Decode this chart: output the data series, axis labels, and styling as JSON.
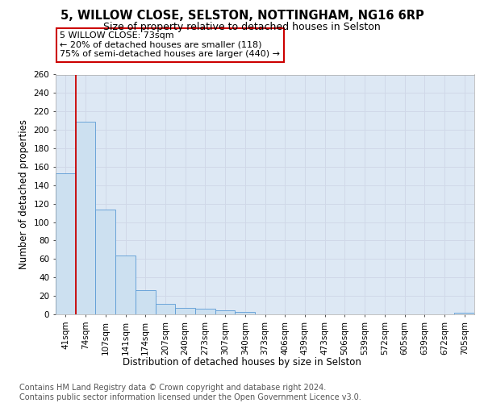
{
  "title1": "5, WILLOW CLOSE, SELSTON, NOTTINGHAM, NG16 6RP",
  "title2": "Size of property relative to detached houses in Selston",
  "xlabel": "Distribution of detached houses by size in Selston",
  "ylabel": "Number of detached properties",
  "categories": [
    "41sqm",
    "74sqm",
    "107sqm",
    "141sqm",
    "174sqm",
    "207sqm",
    "240sqm",
    "273sqm",
    "307sqm",
    "340sqm",
    "373sqm",
    "406sqm",
    "439sqm",
    "473sqm",
    "506sqm",
    "539sqm",
    "572sqm",
    "605sqm",
    "639sqm",
    "672sqm",
    "705sqm"
  ],
  "values": [
    153,
    209,
    114,
    64,
    26,
    11,
    7,
    6,
    4,
    3,
    0,
    0,
    0,
    0,
    0,
    0,
    0,
    0,
    0,
    0,
    2
  ],
  "bar_color": "#cce0f0",
  "bar_edge_color": "#5b9bd5",
  "grid_color": "#d0d8e8",
  "background_color": "#dde8f4",
  "vline_color": "#cc0000",
  "annotation_text": "5 WILLOW CLOSE: 73sqm\n← 20% of detached houses are smaller (118)\n75% of semi-detached houses are larger (440) →",
  "annotation_box_facecolor": "#ffffff",
  "annotation_box_edgecolor": "#cc0000",
  "footnote": "Contains HM Land Registry data © Crown copyright and database right 2024.\nContains public sector information licensed under the Open Government Licence v3.0.",
  "ylim": [
    0,
    260
  ],
  "yticks": [
    0,
    20,
    40,
    60,
    80,
    100,
    120,
    140,
    160,
    180,
    200,
    220,
    240,
    260
  ],
  "title1_fontsize": 10.5,
  "title2_fontsize": 9,
  "axis_label_fontsize": 8.5,
  "tick_fontsize": 7.5,
  "annotation_fontsize": 8,
  "footnote_fontsize": 7
}
